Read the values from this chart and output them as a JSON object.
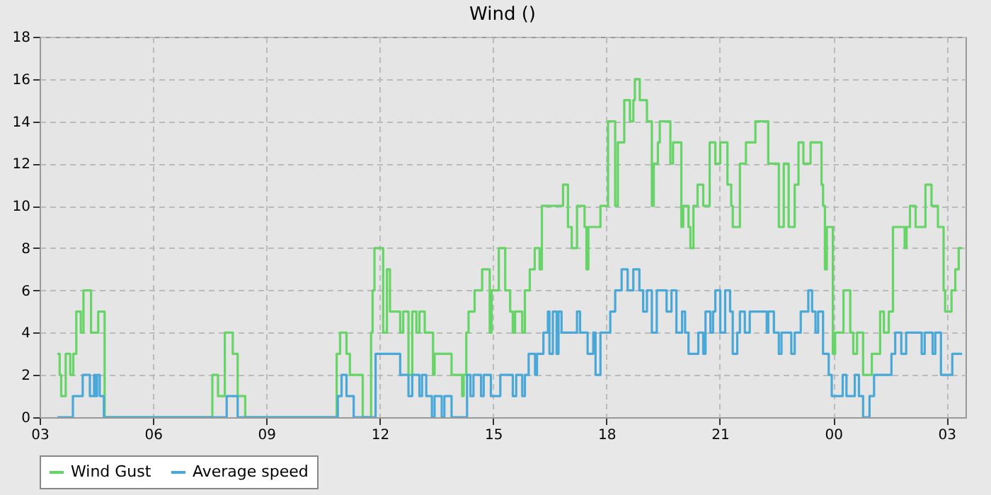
{
  "chart_data": {
    "type": "step",
    "title": "Wind ()",
    "xlim": [
      3,
      27.5
    ],
    "xticks": [
      {
        "value": 3,
        "label": "03"
      },
      {
        "value": 6,
        "label": "06"
      },
      {
        "value": 9,
        "label": "09"
      },
      {
        "value": 12,
        "label": "12"
      },
      {
        "value": 15,
        "label": "15"
      },
      {
        "value": 18,
        "label": "18"
      },
      {
        "value": 21,
        "label": "21"
      },
      {
        "value": 24,
        "label": "00"
      },
      {
        "value": 27,
        "label": "03"
      }
    ],
    "ylim": [
      0,
      18
    ],
    "yticks": [
      0,
      2,
      4,
      6,
      8,
      10,
      12,
      14,
      16,
      18
    ],
    "grid": true,
    "legend": "bottom",
    "series": [
      {
        "name": "Wind Gust",
        "color": "#66d466",
        "x": [
          3.47,
          3.53,
          3.57,
          3.69,
          3.81,
          3.89,
          3.97,
          4.09,
          4.16,
          4.36,
          4.55,
          4.72,
          7.57,
          7.72,
          7.9,
          8.11,
          8.24,
          8.44,
          10.86,
          10.95,
          11.12,
          11.21,
          11.55,
          11.77,
          11.81,
          11.86,
          12.09,
          12.19,
          12.27,
          12.54,
          12.62,
          12.76,
          12.86,
          12.97,
          13.05,
          13.19,
          13.41,
          13.45,
          13.9,
          14.18,
          14.22,
          14.29,
          14.35,
          14.51,
          14.71,
          14.91,
          14.96,
          15.15,
          15.32,
          15.45,
          15.52,
          15.58,
          15.77,
          15.84,
          15.97,
          16.1,
          16.23,
          16.29,
          16.85,
          16.98,
          17.08,
          17.22,
          17.42,
          17.47,
          17.52,
          17.84,
          18.04,
          18.23,
          18.3,
          18.47,
          18.62,
          18.71,
          18.75,
          18.88,
          19.07,
          19.2,
          19.25,
          19.36,
          19.41,
          19.69,
          19.76,
          19.98,
          20.03,
          20.17,
          20.22,
          20.3,
          20.41,
          20.56,
          20.73,
          20.88,
          21.01,
          21.2,
          21.3,
          21.34,
          21.53,
          21.69,
          21.94,
          22.28,
          22.56,
          22.69,
          22.82,
          22.98,
          23.08,
          23.21,
          23.4,
          23.69,
          23.73,
          23.78,
          23.83,
          23.99,
          24.05,
          24.27,
          24.45,
          24.53,
          24.63,
          24.79,
          25.02,
          25.24,
          25.34,
          25.47,
          25.58,
          25.89,
          25.94,
          26.03,
          26.18,
          26.44,
          26.6,
          26.77,
          26.92,
          26.96,
          27.13,
          27.23,
          27.32,
          27.41
        ],
        "values": [
          3,
          2,
          1,
          3,
          2,
          3,
          5,
          4,
          6,
          4,
          5,
          0,
          2,
          1,
          4,
          3,
          1,
          0,
          3,
          4,
          3,
          2,
          0,
          4,
          6,
          8,
          4,
          7,
          5,
          4,
          5,
          2,
          5,
          4,
          5,
          4,
          2,
          3,
          2,
          1,
          2,
          4,
          5,
          6,
          7,
          4,
          6,
          8,
          6,
          5,
          4,
          5,
          4,
          6,
          7,
          8,
          7,
          10,
          11,
          9,
          8,
          10,
          9,
          7,
          9,
          10,
          14,
          10,
          13,
          15,
          14,
          15,
          16,
          15,
          14,
          10,
          12,
          13,
          14,
          12,
          13,
          9,
          10,
          9,
          8,
          10,
          11,
          10,
          13,
          12,
          13,
          11,
          10,
          9,
          12,
          13,
          14,
          12,
          9,
          12,
          9,
          11,
          13,
          12,
          13,
          11,
          10,
          7,
          9,
          3,
          4,
          6,
          4,
          3,
          4,
          2,
          3,
          5,
          4,
          5,
          9,
          8,
          9,
          10,
          9,
          11,
          10,
          9,
          6,
          5,
          6,
          7,
          8,
          8
        ]
      },
      {
        "name": "Average speed",
        "color": "#4aa8d8",
        "x": [
          3.47,
          3.88,
          4.14,
          4.33,
          4.44,
          4.47,
          4.52,
          4.59,
          4.7,
          7.95,
          8.24,
          10.89,
          10.99,
          11.12,
          11.31,
          11.89,
          12.54,
          12.76,
          12.86,
          13.05,
          13.12,
          13.23,
          13.38,
          13.45,
          13.64,
          13.71,
          13.9,
          14.31,
          14.4,
          14.48,
          14.68,
          14.75,
          14.94,
          15.19,
          15.52,
          15.61,
          15.77,
          15.84,
          15.94,
          16.11,
          16.16,
          16.33,
          16.45,
          16.49,
          16.58,
          16.68,
          16.73,
          16.81,
          17.22,
          17.3,
          17.5,
          17.65,
          17.71,
          17.84,
          18.1,
          18.23,
          18.4,
          18.56,
          18.71,
          18.87,
          18.97,
          19.07,
          19.2,
          19.33,
          19.59,
          19.72,
          19.85,
          20.0,
          20.08,
          20.17,
          20.43,
          20.56,
          20.62,
          20.75,
          20.82,
          20.88,
          21.01,
          21.14,
          21.27,
          21.34,
          21.46,
          21.53,
          21.66,
          21.79,
          22.24,
          22.28,
          22.43,
          22.56,
          22.63,
          22.89,
          22.98,
          23.14,
          23.34,
          23.44,
          23.53,
          23.6,
          23.73,
          23.88,
          23.96,
          24.25,
          24.35,
          24.57,
          24.68,
          24.79,
          24.96,
          25.08,
          25.54,
          25.64,
          25.8,
          25.93,
          26.34,
          26.42,
          26.63,
          26.7,
          26.85,
          27.15,
          27.41
        ],
        "values": [
          0,
          1,
          2,
          1,
          2,
          1,
          2,
          1,
          0,
          1,
          0,
          1,
          2,
          1,
          0,
          3,
          2,
          1,
          2,
          1,
          2,
          1,
          0,
          1,
          0,
          1,
          0,
          2,
          1,
          2,
          1,
          2,
          1,
          2,
          1,
          2,
          1,
          2,
          3,
          2,
          3,
          4,
          5,
          3,
          5,
          3,
          5,
          4,
          5,
          4,
          3,
          4,
          2,
          4,
          5,
          6,
          7,
          6,
          7,
          6,
          5,
          6,
          4,
          6,
          5,
          6,
          4,
          5,
          4,
          3,
          4,
          3,
          5,
          4,
          5,
          6,
          4,
          6,
          5,
          3,
          4,
          5,
          4,
          5,
          4,
          5,
          4,
          3,
          4,
          3,
          4,
          5,
          6,
          5,
          4,
          5,
          3,
          2,
          1,
          2,
          1,
          2,
          1,
          0,
          1,
          2,
          3,
          4,
          3,
          4,
          3,
          4,
          3,
          4,
          2,
          3,
          3
        ]
      }
    ]
  }
}
